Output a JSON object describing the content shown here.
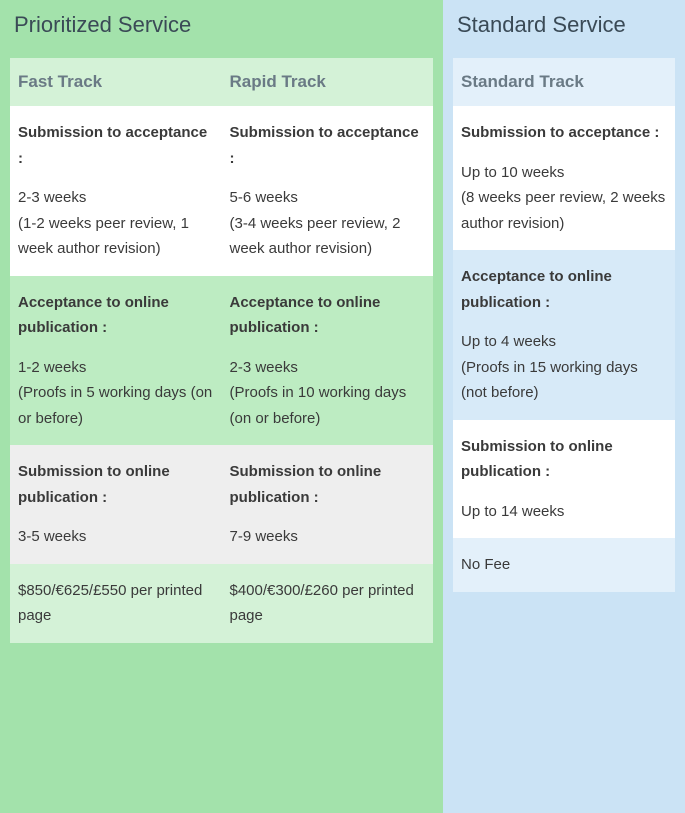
{
  "sections": {
    "priority": {
      "title": "Prioritized Service",
      "bg": "#a3e2ab",
      "header_bg": "#d4f2d7",
      "alt_bg": "#bdecc2",
      "price_bg": "#d4f2d7"
    },
    "standard": {
      "title": "Standard Service",
      "bg": "#cbe3f5",
      "header_bg": "#e3f0fa",
      "alt_bg": "#d7eaf8",
      "price_bg": "#e3f0fa"
    }
  },
  "tracks": {
    "fast": {
      "name": "Fast Track"
    },
    "rapid": {
      "name": "Rapid Track"
    },
    "std": {
      "name": "Standard Track"
    }
  },
  "labels": {
    "sub_to_acc": "Submission to acceptance :",
    "acc_to_pub": "Acceptance to online publication :",
    "sub_to_pub": "Submission to online publication :"
  },
  "rows": {
    "sub_acc": {
      "fast": "2-3 weeks\n(1-2 weeks peer review, 1 week author revision)",
      "rapid": "5-6 weeks\n(3-4 weeks peer review, 2 week author revision)",
      "std": "Up to 10 weeks\n(8 weeks peer review, 2 weeks author revision)"
    },
    "acc_pub": {
      "fast": "1-2 weeks\n(Proofs in 5 working days (on or before)",
      "rapid": "2-3 weeks\n(Proofs in 10 working days (on or before)",
      "std": "Up to 4 weeks\n(Proofs in 15 working days (not before)"
    },
    "sub_pub": {
      "fast": "3-5 weeks",
      "rapid": "7-9 weeks",
      "std": "Up to 14 weeks"
    },
    "price": {
      "fast": "$850/€625/£550 per printed page",
      "rapid": "$400/€300/£260 per printed page",
      "std": "No Fee"
    }
  },
  "typography": {
    "title_fontsize": 22,
    "title_color": "#3a4a56",
    "header_fontsize": 17,
    "header_color": "#6a7a85",
    "cell_fontsize": 15,
    "cell_color": "#3a3a3a"
  },
  "row_backgrounds": {
    "white": "#ffffff",
    "gray": "#eeeeee"
  }
}
